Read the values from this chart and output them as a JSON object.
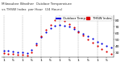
{
  "title_left": "Milwaukee Weather  Outdoor Temp   vs THSW Index",
  "legend_labels": [
    "Outdoor Temp",
    "THSW Index"
  ],
  "outdoor_color": "#0000dd",
  "thsw_color": "#dd0000",
  "black_color": "#000000",
  "hours": [
    0,
    1,
    2,
    3,
    4,
    5,
    6,
    7,
    8,
    9,
    10,
    11,
    12,
    13,
    14,
    15,
    16,
    17,
    18,
    19,
    20,
    21,
    22,
    23
  ],
  "outdoor_temp": [
    33,
    32,
    31,
    30,
    30,
    29,
    34,
    44,
    54,
    62,
    68,
    72,
    73,
    72,
    70,
    67,
    63,
    59,
    55,
    51,
    47,
    44,
    40,
    37
  ],
  "thsw_index": [
    29,
    28,
    27,
    26,
    26,
    25,
    30,
    42,
    55,
    65,
    73,
    80,
    82,
    79,
    74,
    69,
    62,
    56,
    50,
    45,
    40,
    35,
    31,
    28
  ],
  "background_color": "#ffffff",
  "grid_color": "#999999",
  "ylim": [
    22,
    88
  ],
  "ytick_vals": [
    30,
    40,
    50,
    60,
    70,
    80
  ],
  "vgrid_hours": [
    0,
    4,
    8,
    12,
    16,
    20,
    24
  ],
  "dot_size": 2.5,
  "tick_fontsize": 3.2,
  "title_fontsize": 3.0,
  "legend_fontsize": 2.8,
  "xtick_every": 2,
  "xtick_labels_raw": [
    "1",
    "3",
    "5",
    "7",
    "1",
    "3",
    "5",
    "7",
    "1",
    "3",
    "5",
    "7",
    "1",
    "3",
    "5",
    "7",
    "1",
    "3",
    "5",
    "7",
    "1",
    "3",
    "5",
    "7"
  ]
}
